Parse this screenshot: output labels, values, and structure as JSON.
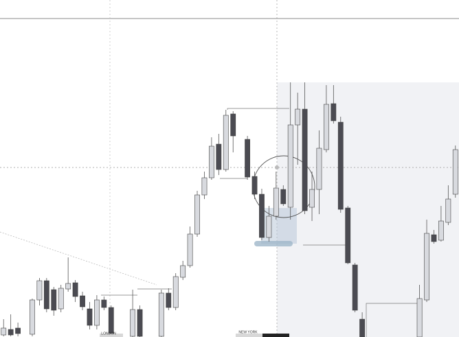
{
  "chart_data": {
    "type": "candlestick",
    "x": [
      0,
      1,
      2,
      4,
      5,
      6,
      7,
      8,
      9,
      10,
      11,
      12,
      13,
      14,
      15,
      18,
      19,
      22,
      23,
      24,
      25,
      26,
      27,
      28,
      29,
      30,
      31,
      32,
      34,
      35,
      36,
      37,
      38,
      39,
      40,
      41,
      42,
      43,
      44,
      45,
      46,
      47,
      48,
      49,
      50,
      58,
      59,
      60,
      61,
      62,
      63
    ],
    "open": [
      3,
      11,
      13,
      4,
      54,
      82,
      69,
      41,
      70,
      79,
      60,
      41,
      17,
      54,
      43,
      1,
      40,
      1,
      64,
      43,
      87,
      104,
      150,
      207,
      232,
      281,
      244,
      325,
      288,
      234,
      208,
      145,
      176,
      215,
      189,
      309,
      332,
      189,
      215,
      273,
      340,
      313,
      188,
      105,
      26,
      0,
      54,
      149,
      141,
      167,
      208
    ],
    "high": [
      26,
      33,
      21,
      56,
      86,
      86,
      73,
      76,
      116,
      83,
      66,
      51,
      61,
      59,
      46,
      69,
      46,
      69,
      71,
      93,
      111,
      161,
      213,
      241,
      291,
      296,
      331,
      329,
      293,
      241,
      216,
      191,
      241,
      221,
      371,
      356,
      371,
      241,
      301,
      367,
      367,
      321,
      191,
      108,
      36,
      76,
      171,
      156,
      191,
      221,
      279
    ],
    "low": [
      1,
      1,
      1,
      1,
      46,
      36,
      31,
      36,
      66,
      51,
      39,
      11,
      11,
      39,
      0,
      0,
      0,
      0,
      39,
      39,
      83,
      101,
      146,
      201,
      229,
      236,
      241,
      269,
      229,
      201,
      141,
      139,
      171,
      191,
      171,
      251,
      179,
      169,
      179,
      269,
      311,
      181,
      106,
      36,
      0,
      0,
      51,
      136,
      139,
      163,
      203
    ],
    "close": [
      13,
      3,
      5,
      54,
      82,
      41,
      39,
      71,
      78,
      59,
      44,
      17,
      54,
      43,
      1,
      40,
      1,
      64,
      43,
      88,
      104,
      150,
      207,
      232,
      278,
      244,
      323,
      293,
      233,
      208,
      145,
      176,
      217,
      194,
      309,
      332,
      184,
      215,
      275,
      339,
      315,
      186,
      108,
      39,
      0,
      56,
      151,
      139,
      169,
      201,
      273
    ],
    "up_color": "#d8dadf",
    "down_color": "#4b4b52",
    "xlim": [
      -0.5,
      63.5
    ],
    "ylim": [
      0,
      491
    ],
    "session_labels": [
      "LONDON",
      "NEW YORK"
    ]
  }
}
